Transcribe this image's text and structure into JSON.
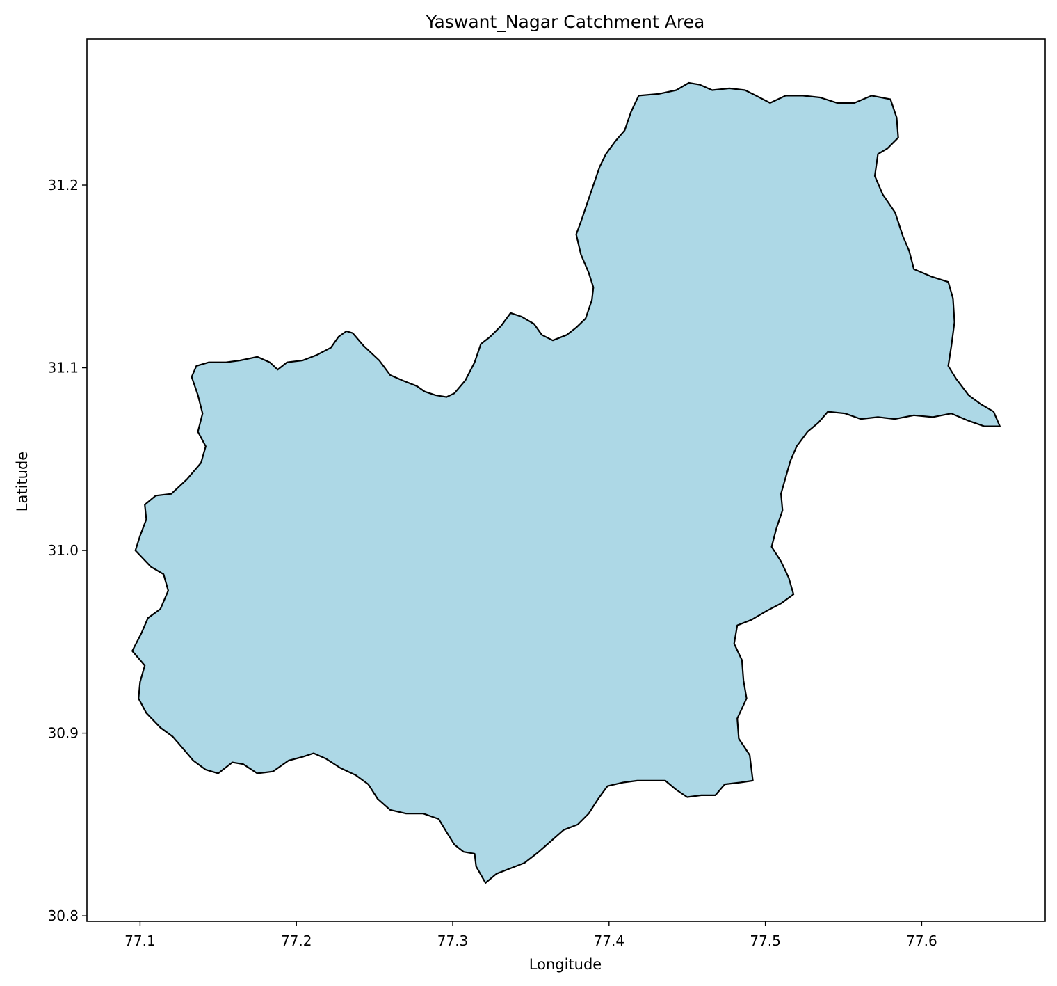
{
  "chart_data": {
    "type": "map",
    "title": "Yaswant_Nagar Catchment Area",
    "xlabel": "Longitude",
    "ylabel": "Latitude",
    "xlim": [
      77.066,
      77.679
    ],
    "ylim": [
      30.797,
      31.28
    ],
    "x_ticks": [
      77.1,
      77.2,
      77.3,
      77.4,
      77.5,
      77.6
    ],
    "x_tick_labels": [
      "77.1",
      "77.2",
      "77.3",
      "77.4",
      "77.5",
      "77.6"
    ],
    "y_ticks": [
      30.8,
      30.9,
      31.0,
      31.1,
      31.2
    ],
    "y_tick_labels": [
      "30.8",
      "30.9",
      "31.0",
      "31.1",
      "31.2"
    ],
    "grid": false,
    "fill_color": "#add8e6",
    "edge_color": "#000000",
    "boundary": [
      [
        77.133,
        31.095
      ],
      [
        77.136,
        31.101
      ],
      [
        77.144,
        31.103
      ],
      [
        77.155,
        31.103
      ],
      [
        77.164,
        31.104
      ],
      [
        77.175,
        31.106
      ],
      [
        77.183,
        31.103
      ],
      [
        77.188,
        31.099
      ],
      [
        77.194,
        31.103
      ],
      [
        77.204,
        31.104
      ],
      [
        77.213,
        31.107
      ],
      [
        77.222,
        31.111
      ],
      [
        77.227,
        31.117
      ],
      [
        77.232,
        31.12
      ],
      [
        77.236,
        31.119
      ],
      [
        77.243,
        31.112
      ],
      [
        77.253,
        31.104
      ],
      [
        77.26,
        31.096
      ],
      [
        77.268,
        31.093
      ],
      [
        77.277,
        31.09
      ],
      [
        77.282,
        31.087
      ],
      [
        77.289,
        31.085
      ],
      [
        77.296,
        31.084
      ],
      [
        77.301,
        31.086
      ],
      [
        77.308,
        31.093
      ],
      [
        77.314,
        31.103
      ],
      [
        77.318,
        31.113
      ],
      [
        77.324,
        31.117
      ],
      [
        77.331,
        31.123
      ],
      [
        77.337,
        31.13
      ],
      [
        77.344,
        31.128
      ],
      [
        77.352,
        31.124
      ],
      [
        77.357,
        31.118
      ],
      [
        77.364,
        31.115
      ],
      [
        77.373,
        31.118
      ],
      [
        77.379,
        31.122
      ],
      [
        77.385,
        31.127
      ],
      [
        77.389,
        31.137
      ],
      [
        77.39,
        31.144
      ],
      [
        77.387,
        31.152
      ],
      [
        77.382,
        31.162
      ],
      [
        77.379,
        31.173
      ],
      [
        77.382,
        31.18
      ],
      [
        77.386,
        31.19
      ],
      [
        77.39,
        31.2
      ],
      [
        77.394,
        31.21
      ],
      [
        77.398,
        31.217
      ],
      [
        77.404,
        31.224
      ],
      [
        77.41,
        31.23
      ],
      [
        77.414,
        31.24
      ],
      [
        77.419,
        31.249
      ],
      [
        77.432,
        31.25
      ],
      [
        77.443,
        31.252
      ],
      [
        77.451,
        31.256
      ],
      [
        77.458,
        31.255
      ],
      [
        77.466,
        31.252
      ],
      [
        77.477,
        31.253
      ],
      [
        77.487,
        31.252
      ],
      [
        77.494,
        31.249
      ],
      [
        77.503,
        31.245
      ],
      [
        77.513,
        31.249
      ],
      [
        77.524,
        31.249
      ],
      [
        77.535,
        31.248
      ],
      [
        77.546,
        31.245
      ],
      [
        77.557,
        31.245
      ],
      [
        77.568,
        31.249
      ],
      [
        77.58,
        31.247
      ],
      [
        77.584,
        31.237
      ],
      [
        77.585,
        31.226
      ],
      [
        77.578,
        31.22
      ],
      [
        77.572,
        31.217
      ],
      [
        77.57,
        31.205
      ],
      [
        77.575,
        31.195
      ],
      [
        77.583,
        31.185
      ],
      [
        77.588,
        31.172
      ],
      [
        77.592,
        31.164
      ],
      [
        77.595,
        31.154
      ],
      [
        77.606,
        31.15
      ],
      [
        77.617,
        31.147
      ],
      [
        77.62,
        31.138
      ],
      [
        77.621,
        31.125
      ],
      [
        77.619,
        31.112
      ],
      [
        77.617,
        31.101
      ],
      [
        77.622,
        31.094
      ],
      [
        77.63,
        31.085
      ],
      [
        77.638,
        31.08
      ],
      [
        77.646,
        31.076
      ],
      [
        77.65,
        31.068
      ],
      [
        77.64,
        31.068
      ],
      [
        77.63,
        31.071
      ],
      [
        77.619,
        31.075
      ],
      [
        77.607,
        31.073
      ],
      [
        77.595,
        31.074
      ],
      [
        77.583,
        31.072
      ],
      [
        77.572,
        31.073
      ],
      [
        77.561,
        31.072
      ],
      [
        77.551,
        31.075
      ],
      [
        77.54,
        31.076
      ],
      [
        77.534,
        31.07
      ],
      [
        77.527,
        31.065
      ],
      [
        77.52,
        31.057
      ],
      [
        77.516,
        31.049
      ],
      [
        77.513,
        31.04
      ],
      [
        77.51,
        31.031
      ],
      [
        77.511,
        31.022
      ],
      [
        77.507,
        31.012
      ],
      [
        77.504,
        31.002
      ],
      [
        77.51,
        30.994
      ],
      [
        77.515,
        30.985
      ],
      [
        77.518,
        30.976
      ],
      [
        77.51,
        30.971
      ],
      [
        77.501,
        30.967
      ],
      [
        77.491,
        30.962
      ],
      [
        77.482,
        30.959
      ],
      [
        77.48,
        30.949
      ],
      [
        77.485,
        30.94
      ],
      [
        77.486,
        30.929
      ],
      [
        77.488,
        30.919
      ],
      [
        77.482,
        30.908
      ],
      [
        77.483,
        30.897
      ],
      [
        77.49,
        30.888
      ],
      [
        77.492,
        30.874
      ],
      [
        77.484,
        30.873
      ],
      [
        77.474,
        30.872
      ],
      [
        77.468,
        30.866
      ],
      [
        77.459,
        30.866
      ],
      [
        77.45,
        30.865
      ],
      [
        77.443,
        30.869
      ],
      [
        77.436,
        30.874
      ],
      [
        77.427,
        30.874
      ],
      [
        77.418,
        30.874
      ],
      [
        77.409,
        30.873
      ],
      [
        77.399,
        30.871
      ],
      [
        77.393,
        30.864
      ],
      [
        77.387,
        30.856
      ],
      [
        77.38,
        30.85
      ],
      [
        77.371,
        30.847
      ],
      [
        77.363,
        30.841
      ],
      [
        77.355,
        30.835
      ],
      [
        77.346,
        30.829
      ],
      [
        77.337,
        30.826
      ],
      [
        77.328,
        30.823
      ],
      [
        77.321,
        30.818
      ],
      [
        77.315,
        30.827
      ],
      [
        77.314,
        30.834
      ],
      [
        77.307,
        30.835
      ],
      [
        77.301,
        30.839
      ],
      [
        77.296,
        30.846
      ],
      [
        77.291,
        30.853
      ],
      [
        77.281,
        30.856
      ],
      [
        77.27,
        30.856
      ],
      [
        77.26,
        30.858
      ],
      [
        77.252,
        30.864
      ],
      [
        77.246,
        30.872
      ],
      [
        77.238,
        30.877
      ],
      [
        77.228,
        30.881
      ],
      [
        77.219,
        30.886
      ],
      [
        77.211,
        30.889
      ],
      [
        77.204,
        30.887
      ],
      [
        77.195,
        30.885
      ],
      [
        77.185,
        30.879
      ],
      [
        77.175,
        30.878
      ],
      [
        77.166,
        30.883
      ],
      [
        77.159,
        30.884
      ],
      [
        77.15,
        30.878
      ],
      [
        77.142,
        30.88
      ],
      [
        77.134,
        30.885
      ],
      [
        77.128,
        30.891
      ],
      [
        77.121,
        30.898
      ],
      [
        77.113,
        30.903
      ],
      [
        77.104,
        30.911
      ],
      [
        77.099,
        30.919
      ],
      [
        77.1,
        30.928
      ],
      [
        77.103,
        30.937
      ],
      [
        77.095,
        30.945
      ],
      [
        77.101,
        30.955
      ],
      [
        77.105,
        30.963
      ],
      [
        77.113,
        30.968
      ],
      [
        77.118,
        30.978
      ],
      [
        77.115,
        30.987
      ],
      [
        77.107,
        30.991
      ],
      [
        77.097,
        31.0
      ],
      [
        77.1,
        31.008
      ],
      [
        77.104,
        31.017
      ],
      [
        77.103,
        31.025
      ],
      [
        77.11,
        31.03
      ],
      [
        77.12,
        31.031
      ],
      [
        77.13,
        31.039
      ],
      [
        77.139,
        31.048
      ],
      [
        77.142,
        31.057
      ],
      [
        77.137,
        31.065
      ],
      [
        77.14,
        31.075
      ],
      [
        77.137,
        31.085
      ],
      [
        77.133,
        31.095
      ]
    ]
  }
}
